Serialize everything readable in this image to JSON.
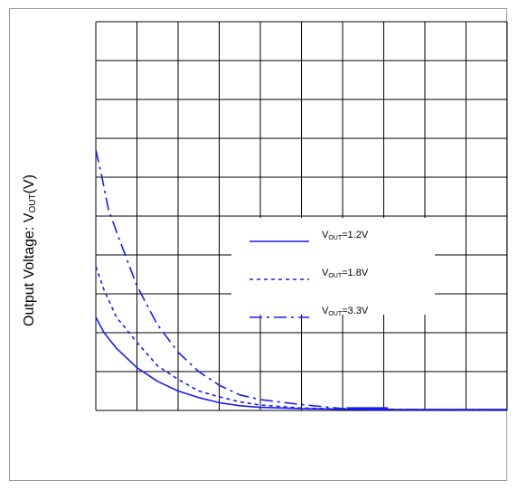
{
  "chart_data": {
    "type": "line",
    "title": "",
    "xlabel": "",
    "ylabel_parts": {
      "prefix": "Output Voltage: V",
      "sub": "OUT",
      "suffix": "(V)"
    },
    "xlim": [
      0,
      10
    ],
    "ylim": [
      0,
      10
    ],
    "grid": true,
    "legend_position": "center-right",
    "series": [
      {
        "label": "1.2V",
        "color": "#1a1aff",
        "dash": "solid",
        "x": [
          0,
          0.2,
          0.5,
          1.0,
          1.5,
          2.0,
          2.5,
          3.0,
          3.5,
          4.0,
          5.0,
          6.0,
          7.0,
          8.0,
          9.0,
          10.0
        ],
        "y": [
          2.4,
          2.0,
          1.6,
          1.1,
          0.75,
          0.5,
          0.33,
          0.2,
          0.12,
          0.08,
          0.05,
          0.03,
          0.02,
          0.02,
          0.02,
          0.02
        ]
      },
      {
        "label": "1.8V",
        "color": "#1a1aff",
        "dash": "dot",
        "x": [
          0,
          0.2,
          0.5,
          1.0,
          1.5,
          2.0,
          2.5,
          3.0,
          3.5,
          4.0,
          5.0,
          6.0,
          7.0,
          8.0,
          9.0,
          10.0
        ],
        "y": [
          3.7,
          3.1,
          2.4,
          1.75,
          1.15,
          0.8,
          0.5,
          0.35,
          0.22,
          0.14,
          0.06,
          0.04,
          0.02,
          0.02,
          0.02,
          0.02
        ]
      },
      {
        "label": "3.3V",
        "color": "#1a1aff",
        "dash": "dashdot",
        "x": [
          0,
          0.15,
          0.3,
          0.5,
          1.0,
          1.5,
          2.0,
          2.5,
          3.0,
          3.5,
          4.0,
          5.0,
          5.5,
          6.0,
          7.0,
          8.0,
          9.0,
          10.0
        ],
        "y": [
          6.7,
          6.0,
          5.2,
          4.6,
          3.2,
          2.2,
          1.5,
          1.0,
          0.65,
          0.4,
          0.28,
          0.15,
          0.1,
          0.05,
          0.03,
          0.02,
          0.02,
          0.02
        ]
      }
    ],
    "legend": {
      "prefix": "V",
      "sub": "OUT",
      "entries": [
        "=1.2V",
        "=1.8V",
        "=3.3V"
      ]
    }
  }
}
